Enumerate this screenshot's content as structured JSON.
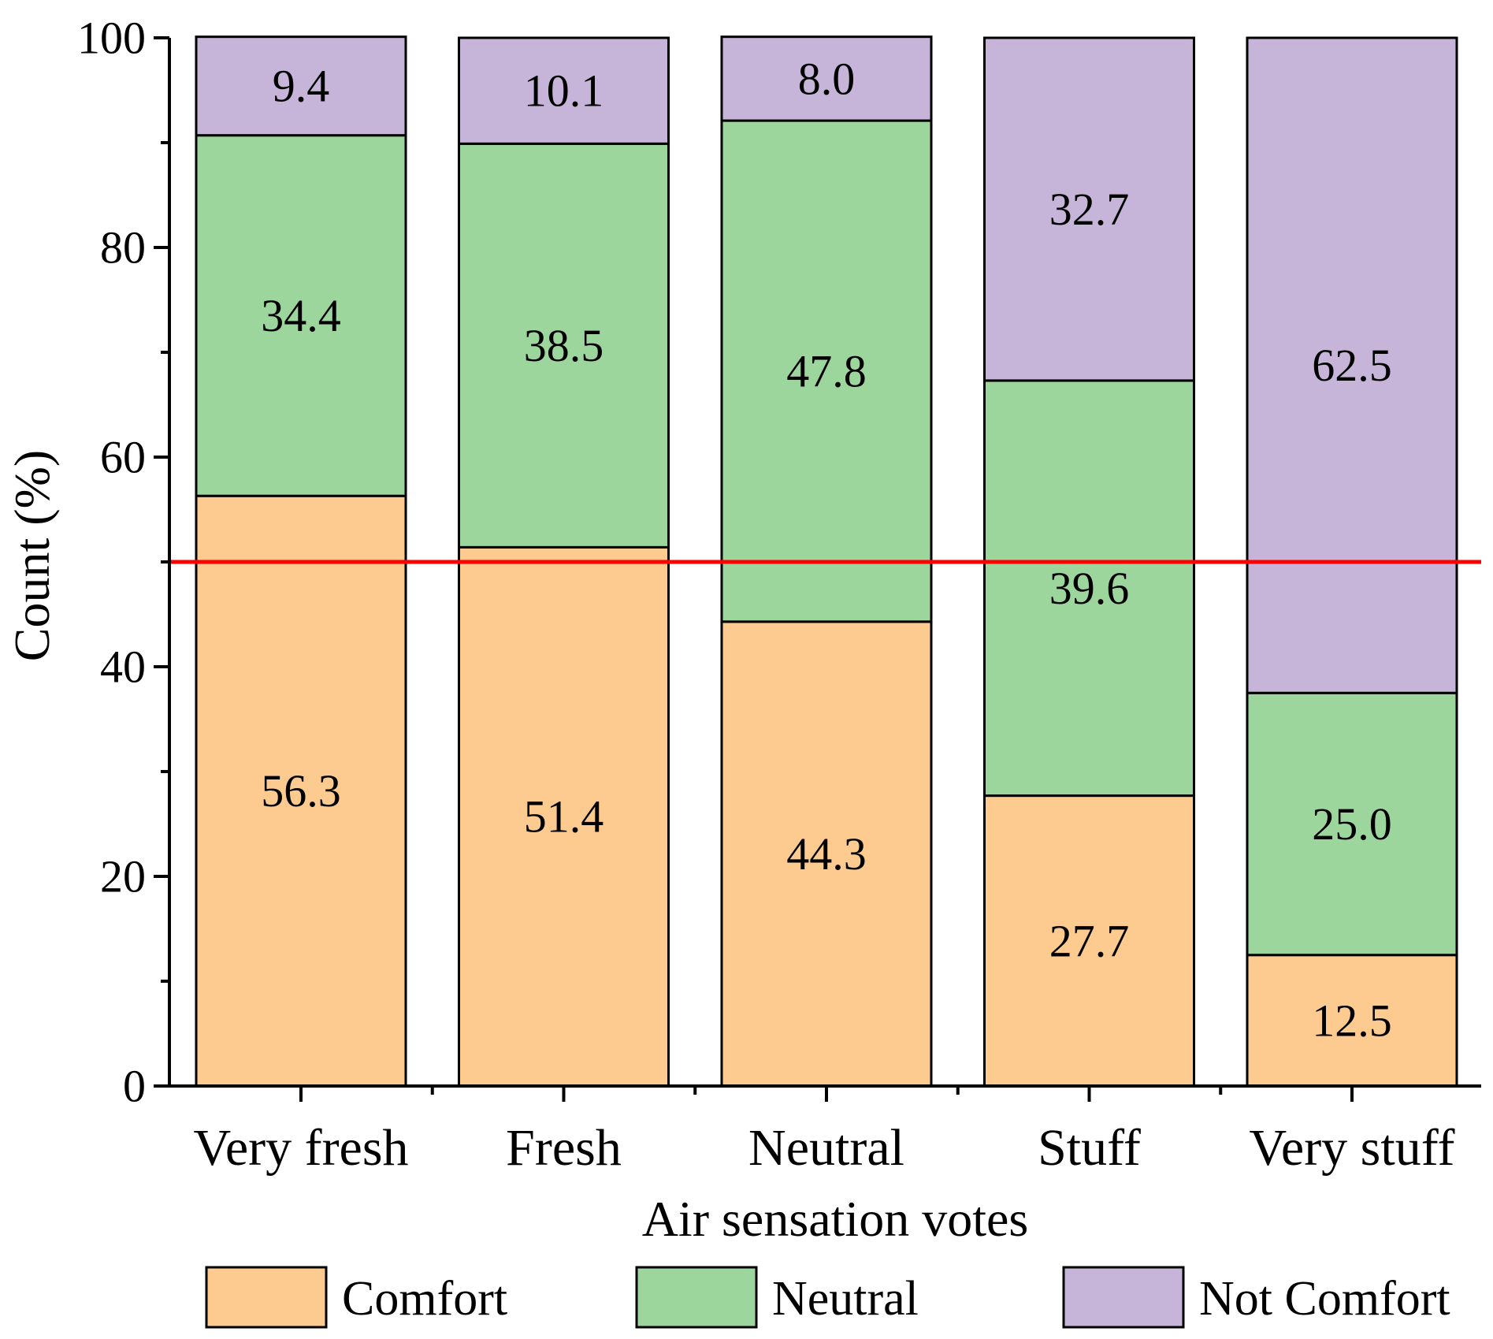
{
  "chart_data": {
    "type": "bar",
    "stacked": true,
    "categories": [
      "Very fresh",
      "Fresh",
      "Neutral",
      "Stuff",
      "Very stuff"
    ],
    "series": [
      {
        "name": "Comfort",
        "values": [
          56.3,
          51.4,
          44.3,
          27.7,
          12.5
        ],
        "labels": [
          "56.3",
          "51.4",
          "44.3",
          "27.7",
          "12.5"
        ],
        "color": "#FDCA90"
      },
      {
        "name": "Neutral",
        "values": [
          34.4,
          38.5,
          47.8,
          39.6,
          25.0
        ],
        "labels": [
          "34.4",
          "38.5",
          "47.8",
          "39.6",
          "25.0"
        ],
        "color": "#9DD69D"
      },
      {
        "name": "Not Comfort",
        "values": [
          9.4,
          10.1,
          8.0,
          32.7,
          62.5
        ],
        "labels": [
          "9.4",
          "10.1",
          "8.0",
          "32.7",
          "62.5"
        ],
        "color": "#C6B5D8"
      }
    ],
    "xlabel": "Air sensation votes",
    "ylabel": "Count (%)",
    "ylim": [
      0,
      100
    ],
    "yticks": [
      0,
      20,
      40,
      60,
      80,
      100
    ],
    "reference_line": {
      "y": 50,
      "color": "#FF0000"
    },
    "legend_position": "bottom"
  }
}
